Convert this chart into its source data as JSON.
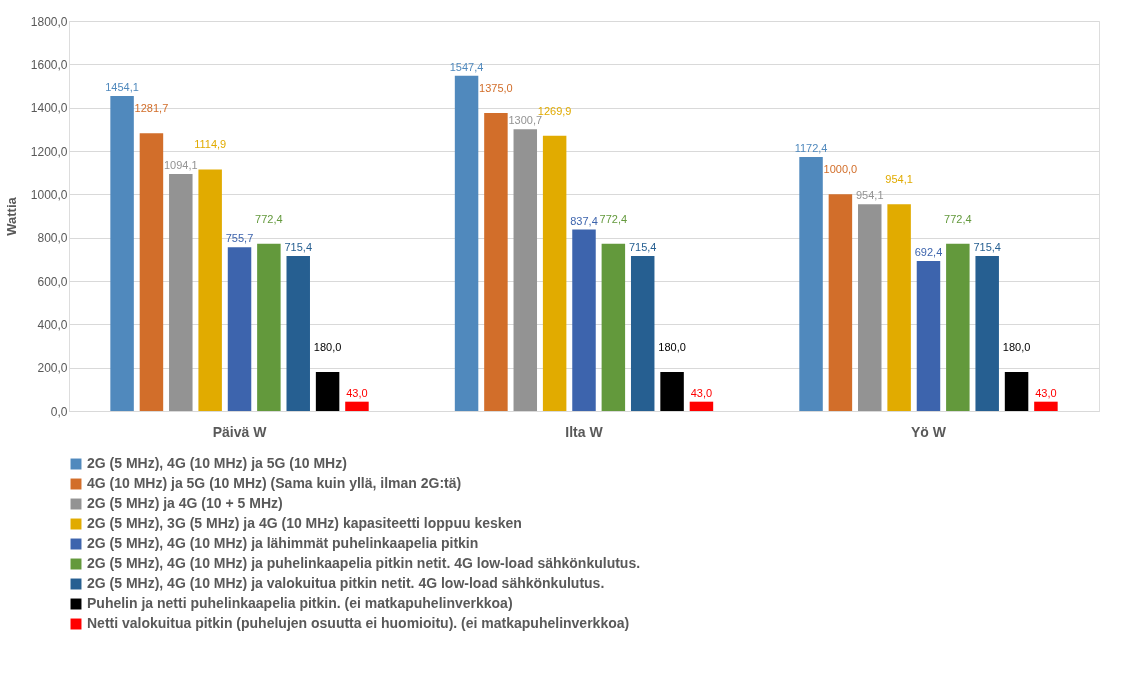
{
  "chart_data": {
    "type": "bar",
    "ylabel": "Wattia",
    "categories": [
      "Päivä W",
      "Ilta W",
      "Yö W"
    ],
    "series": [
      {
        "name": "2G (5 MHz), 4G (10 MHz) ja 5G (10 MHz)",
        "color": "#5089bd",
        "values": [
          1454.1,
          1547.4,
          1172.4
        ],
        "value_labels": [
          "1454,1",
          "1547,4",
          "1172,4"
        ]
      },
      {
        "name": "4G (10 MHz) ja 5G (10 MHz) (Sama kuin yllä, ilman 2G:tä)",
        "color": "#d26e2a",
        "values": [
          1281.7,
          1375.0,
          1000.0
        ],
        "value_labels": [
          "1281,7",
          "1375,0",
          "1000,0"
        ]
      },
      {
        "name": "2G (5 MHz) ja 4G (10 + 5 MHz)",
        "color": "#939393",
        "values": [
          1094.1,
          1300.7,
          954.1
        ],
        "value_labels": [
          "1094,1",
          "1300,7",
          "954,1"
        ]
      },
      {
        "name": "2G  (5 MHz), 3G (5 MHz) ja 4G  (10 MHz) kapasiteetti loppuu kesken",
        "color": "#e1ab00",
        "values": [
          1114.9,
          1269.9,
          954.1
        ],
        "value_labels": [
          "1114,9",
          "1269,9",
          "954,1"
        ]
      },
      {
        "name": "2G (5 MHz), 4G (10 MHz) ja lähimmät puhelinkaapelia pitkin",
        "color": "#3d64ad",
        "values": [
          755.7,
          837.4,
          692.4
        ],
        "value_labels": [
          "755,7",
          "837,4",
          "692,4"
        ]
      },
      {
        "name": "2G (5 MHz), 4G (10 MHz) ja puhelinkaapelia pitkin netit. 4G low-load sähkönkulutus.",
        "color": "#63993c",
        "values": [
          772.4,
          772.4,
          772.4
        ],
        "value_labels": [
          "772,4",
          "772,4",
          "772,4"
        ]
      },
      {
        "name": "2G (5 MHz), 4G (10 MHz) ja valokuitua pitkin netit. 4G low-load sähkönkulutus.",
        "color": "#265f91",
        "values": [
          715.4,
          715.4,
          715.4
        ],
        "value_labels": [
          "715,4",
          "715,4",
          "715,4"
        ]
      },
      {
        "name": "Puhelin ja netti puhelinkaapelia pitkin. (ei matkapuhelinverkkoa)",
        "color": "#000000",
        "values": [
          180.0,
          180.0,
          180.0
        ],
        "value_labels": [
          "180,0",
          "180,0",
          "180,0"
        ]
      },
      {
        "name": "Netti valokuitua pitkin (puhelujen osuutta ei huomioitu). (ei matkapuhelinverkkoa)",
        "color": "#ff0000",
        "values": [
          43.0,
          43.0,
          43.0
        ],
        "value_labels": [
          "43,0",
          "43,0",
          "43,0"
        ]
      }
    ],
    "ylim": [
      0,
      1800
    ],
    "yticks": [
      {
        "value": 0,
        "label": "0,0"
      },
      {
        "value": 200,
        "label": "200,0"
      },
      {
        "value": 400,
        "label": "400,0"
      },
      {
        "value": 600,
        "label": "600,0"
      },
      {
        "value": 800,
        "label": "800,0"
      },
      {
        "value": 1000,
        "label": "1000,0"
      },
      {
        "value": 1200,
        "label": "1200,0"
      },
      {
        "value": 1400,
        "label": "1400,0"
      },
      {
        "value": 1600,
        "label": "1600,0"
      },
      {
        "value": 1800,
        "label": "1800,0"
      }
    ],
    "grid": "y",
    "legend": "bottom"
  }
}
